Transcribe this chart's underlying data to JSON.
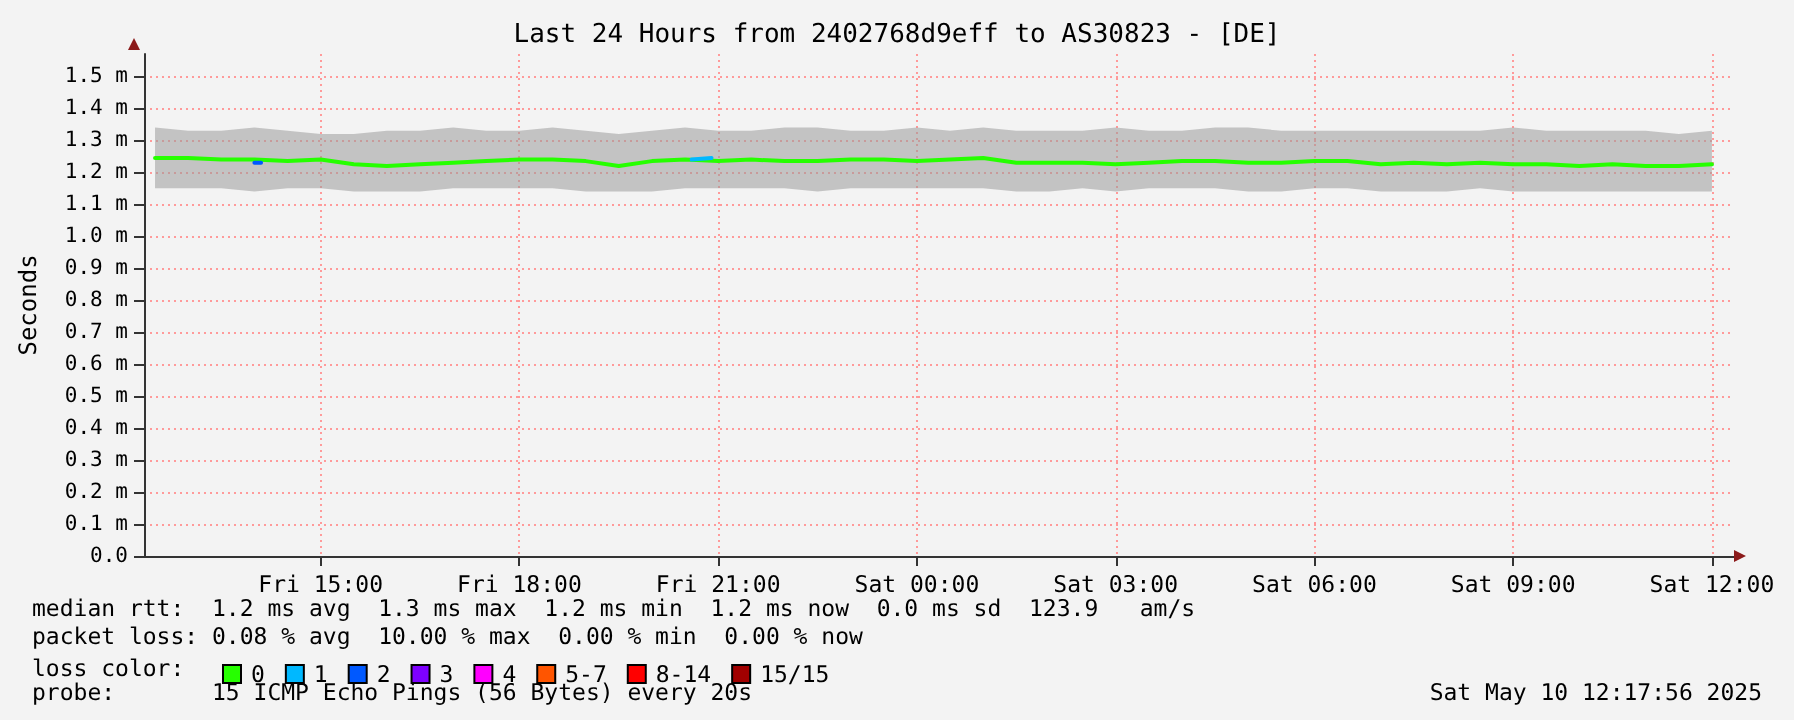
{
  "chart_data": {
    "type": "line",
    "title": "Last 24 Hours from 2402768d9eff to AS30823 - [DE]",
    "ylabel": "Seconds",
    "legend_title": "loss color:",
    "x": [
      "2025-05-09T12:30",
      "2025-05-09T13:00",
      "2025-05-09T13:30",
      "2025-05-09T14:00",
      "2025-05-09T14:30",
      "2025-05-09T15:00",
      "2025-05-09T15:30",
      "2025-05-09T16:00",
      "2025-05-09T16:30",
      "2025-05-09T17:00",
      "2025-05-09T17:30",
      "2025-05-09T18:00",
      "2025-05-09T18:30",
      "2025-05-09T19:00",
      "2025-05-09T19:30",
      "2025-05-09T20:00",
      "2025-05-09T20:30",
      "2025-05-09T21:00",
      "2025-05-09T21:30",
      "2025-05-09T22:00",
      "2025-05-09T22:30",
      "2025-05-09T23:00",
      "2025-05-09T23:30",
      "2025-05-10T00:00",
      "2025-05-10T00:30",
      "2025-05-10T01:00",
      "2025-05-10T01:30",
      "2025-05-10T02:00",
      "2025-05-10T02:30",
      "2025-05-10T03:00",
      "2025-05-10T03:30",
      "2025-05-10T04:00",
      "2025-05-10T04:30",
      "2025-05-10T05:00",
      "2025-05-10T05:30",
      "2025-05-10T06:00",
      "2025-05-10T06:30",
      "2025-05-10T07:00",
      "2025-05-10T07:30",
      "2025-05-10T08:00",
      "2025-05-10T08:30",
      "2025-05-10T09:00",
      "2025-05-10T09:30",
      "2025-05-10T10:00",
      "2025-05-10T10:30",
      "2025-05-10T11:00",
      "2025-05-10T11:30",
      "2025-05-10T12:00"
    ],
    "series": [
      {
        "name": "0",
        "color": "#26ff00",
        "values": [
          1.245,
          1.245,
          1.24,
          1.24,
          1.235,
          1.24,
          1.225,
          1.22,
          1.225,
          1.23,
          1.235,
          1.24,
          1.24,
          1.235,
          1.22,
          1.235,
          1.24,
          1.235,
          1.24,
          1.235,
          1.235,
          1.24,
          1.24,
          1.235,
          1.24,
          1.245,
          1.23,
          1.23,
          1.23,
          1.225,
          1.23,
          1.235,
          1.235,
          1.23,
          1.23,
          1.235,
          1.235,
          1.225,
          1.23,
          1.225,
          1.23,
          1.225,
          1.225,
          1.22,
          1.225,
          1.22,
          1.22,
          1.225
        ],
        "lower": [
          1.15,
          1.15,
          1.15,
          1.14,
          1.15,
          1.15,
          1.14,
          1.14,
          1.14,
          1.15,
          1.15,
          1.15,
          1.15,
          1.14,
          1.14,
          1.14,
          1.15,
          1.15,
          1.15,
          1.15,
          1.14,
          1.15,
          1.15,
          1.15,
          1.15,
          1.15,
          1.14,
          1.14,
          1.15,
          1.14,
          1.15,
          1.15,
          1.15,
          1.14,
          1.14,
          1.15,
          1.15,
          1.14,
          1.14,
          1.14,
          1.15,
          1.14,
          1.14,
          1.14,
          1.14,
          1.14,
          1.14,
          1.14
        ],
        "upper": [
          1.34,
          1.33,
          1.33,
          1.34,
          1.33,
          1.32,
          1.32,
          1.33,
          1.33,
          1.34,
          1.33,
          1.33,
          1.34,
          1.33,
          1.32,
          1.33,
          1.34,
          1.33,
          1.33,
          1.34,
          1.34,
          1.33,
          1.33,
          1.34,
          1.33,
          1.34,
          1.33,
          1.33,
          1.33,
          1.34,
          1.33,
          1.33,
          1.34,
          1.34,
          1.33,
          1.33,
          1.33,
          1.33,
          1.33,
          1.33,
          1.33,
          1.34,
          1.33,
          1.33,
          1.33,
          1.33,
          1.32,
          1.33
        ]
      },
      {
        "name": "1",
        "color": "#00b8ff",
        "x": [
          "2025-05-09T20:36",
          "2025-05-09T20:54"
        ],
        "values": [
          1.24,
          1.245
        ]
      },
      {
        "name": "2",
        "color": "#0059ff",
        "x": [
          "2025-05-09T14:00",
          "2025-05-09T14:06"
        ],
        "values": [
          1.23,
          1.23
        ]
      },
      {
        "name": "3",
        "color": "#7e00ff",
        "values": [
          null,
          null,
          null,
          null,
          null,
          null,
          null,
          null,
          null,
          null,
          null,
          null,
          null,
          null,
          null,
          null,
          null,
          null,
          null,
          null,
          null,
          null,
          null,
          null,
          null,
          null,
          null,
          null,
          null,
          null,
          null,
          null,
          null,
          null,
          null,
          null,
          null,
          null,
          null,
          null,
          null,
          null,
          null,
          null,
          null,
          null,
          null,
          null
        ]
      },
      {
        "name": "4",
        "color": "#ff00ff",
        "values": [
          null,
          null,
          null,
          null,
          null,
          null,
          null,
          null,
          null,
          null,
          null,
          null,
          null,
          null,
          null,
          null,
          null,
          null,
          null,
          null,
          null,
          null,
          null,
          null,
          null,
          null,
          null,
          null,
          null,
          null,
          null,
          null,
          null,
          null,
          null,
          null,
          null,
          null,
          null,
          null,
          null,
          null,
          null,
          null,
          null,
          null,
          null,
          null
        ]
      },
      {
        "name": "5-7",
        "color": "#ff5500",
        "values": [
          null,
          null,
          null,
          null,
          null,
          null,
          null,
          null,
          null,
          null,
          null,
          null,
          null,
          null,
          null,
          null,
          null,
          null,
          null,
          null,
          null,
          null,
          null,
          null,
          null,
          null,
          null,
          null,
          null,
          null,
          null,
          null,
          null,
          null,
          null,
          null,
          null,
          null,
          null,
          null,
          null,
          null,
          null,
          null,
          null,
          null,
          null,
          null
        ]
      },
      {
        "name": "8-14",
        "color": "#ff0000",
        "values": [
          null,
          null,
          null,
          null,
          null,
          null,
          null,
          null,
          null,
          null,
          null,
          null,
          null,
          null,
          null,
          null,
          null,
          null,
          null,
          null,
          null,
          null,
          null,
          null,
          null,
          null,
          null,
          null,
          null,
          null,
          null,
          null,
          null,
          null,
          null,
          null,
          null,
          null,
          null,
          null,
          null,
          null,
          null,
          null,
          null,
          null,
          null,
          null
        ]
      },
      {
        "name": "15/15",
        "color": "#a10000",
        "values": [
          null,
          null,
          null,
          null,
          null,
          null,
          null,
          null,
          null,
          null,
          null,
          null,
          null,
          null,
          null,
          null,
          null,
          null,
          null,
          null,
          null,
          null,
          null,
          null,
          null,
          null,
          null,
          null,
          null,
          null,
          null,
          null,
          null,
          null,
          null,
          null,
          null,
          null,
          null,
          null,
          null,
          null,
          null,
          null,
          null,
          null,
          null,
          null
        ]
      }
    ],
    "xlim": [
      "2025-05-09T12:20",
      "2025-05-10T12:20"
    ],
    "xticks": [
      {
        "value": "2025-05-09T15:00",
        "label": "Fri 15:00"
      },
      {
        "value": "2025-05-09T18:00",
        "label": "Fri 18:00"
      },
      {
        "value": "2025-05-09T21:00",
        "label": "Fri 21:00"
      },
      {
        "value": "2025-05-10T00:00",
        "label": "Sat 00:00"
      },
      {
        "value": "2025-05-10T03:00",
        "label": "Sat 03:00"
      },
      {
        "value": "2025-05-10T06:00",
        "label": "Sat 06:00"
      },
      {
        "value": "2025-05-10T09:00",
        "label": "Sat 09:00"
      },
      {
        "value": "2025-05-10T12:00",
        "label": "Sat 12:00"
      }
    ],
    "ylim": [
      0,
      1.57
    ],
    "yticks": [
      {
        "value": 0,
        "label": "0.0"
      },
      {
        "value": 0.1,
        "label": "0.1 m"
      },
      {
        "value": 0.2,
        "label": "0.2 m"
      },
      {
        "value": 0.3,
        "label": "0.3 m"
      },
      {
        "value": 0.4,
        "label": "0.4 m"
      },
      {
        "value": 0.5,
        "label": "0.5 m"
      },
      {
        "value": 0.6,
        "label": "0.6 m"
      },
      {
        "value": 0.7,
        "label": "0.7 m"
      },
      {
        "value": 0.8,
        "label": "0.8 m"
      },
      {
        "value": 0.9,
        "label": "0.9 m"
      },
      {
        "value": 1.0,
        "label": "1.0 m"
      },
      {
        "value": 1.1,
        "label": "1.1 m"
      },
      {
        "value": 1.2,
        "label": "1.2 m"
      },
      {
        "value": 1.3,
        "label": "1.3 m"
      },
      {
        "value": 1.4,
        "label": "1.4 m"
      },
      {
        "value": 1.5,
        "label": "1.5 m"
      }
    ],
    "grid": true,
    "legend": "bottom left",
    "marker": "none",
    "line_style": "solid",
    "annotations": [
      "median rtt:  1.2 ms avg  1.3 ms max  1.2 ms min  1.2 ms now  0.0 ms sd  123.9   am/s",
      "packet loss: 0.08 % avg  10.00 % max  0.00 % min  0.00 % now",
      "probe:       15 ICMP Echo Pings (56 Bytes) every 20s",
      "Sat May 10 12:17:56 2025"
    ]
  }
}
